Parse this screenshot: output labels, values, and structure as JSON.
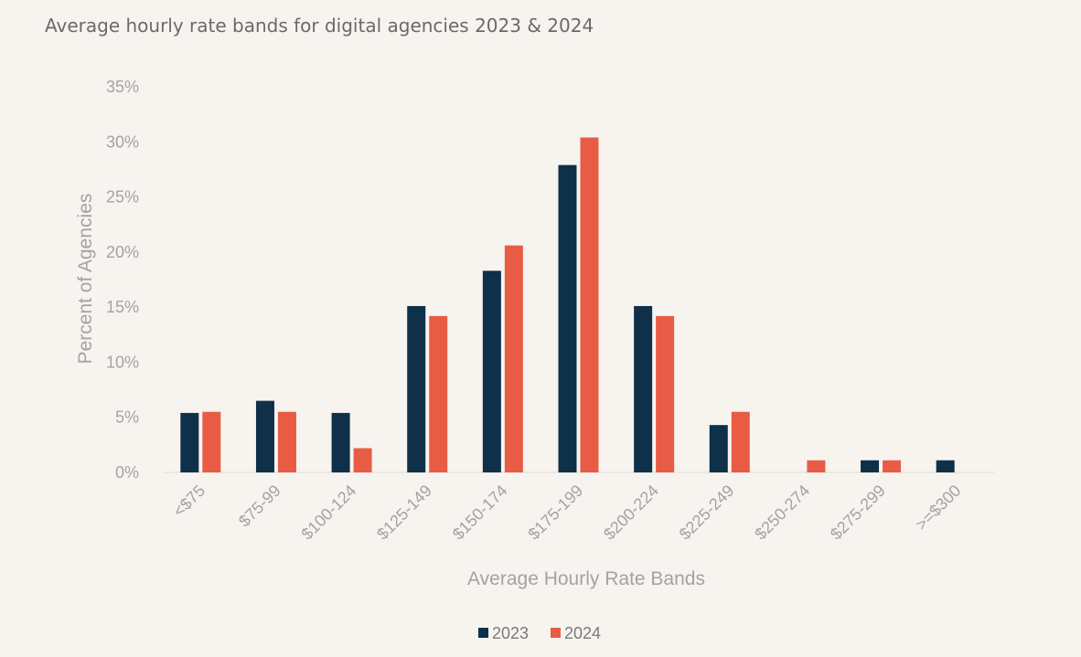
{
  "chart_data": {
    "type": "bar",
    "title": "Average hourly rate bands for digital agencies 2023 & 2024",
    "xlabel": "Average Hourly Rate Bands",
    "ylabel": "Percent of Agencies",
    "categories": [
      "<$75",
      "$75-99",
      "$100-124",
      "$125-149",
      "$150-174",
      "$175-199",
      "$200-224",
      "$225-249",
      "$250-274",
      "$275-299",
      ">=$300"
    ],
    "series": [
      {
        "name": "2023",
        "color": "#0e3049",
        "values": [
          5.4,
          6.5,
          5.4,
          15.1,
          18.3,
          27.9,
          15.1,
          4.3,
          0,
          1.1,
          1.1
        ]
      },
      {
        "name": "2024",
        "color": "#e85c45",
        "values": [
          5.5,
          5.5,
          2.2,
          14.2,
          20.6,
          30.4,
          14.2,
          5.5,
          1.1,
          1.1,
          0
        ]
      }
    ],
    "ylim": [
      0,
      35
    ],
    "yticks": [
      "0%",
      "5%",
      "10%",
      "15%",
      "20%",
      "25%",
      "30%",
      "35%"
    ],
    "grid": false,
    "legend_position": "bottom"
  }
}
